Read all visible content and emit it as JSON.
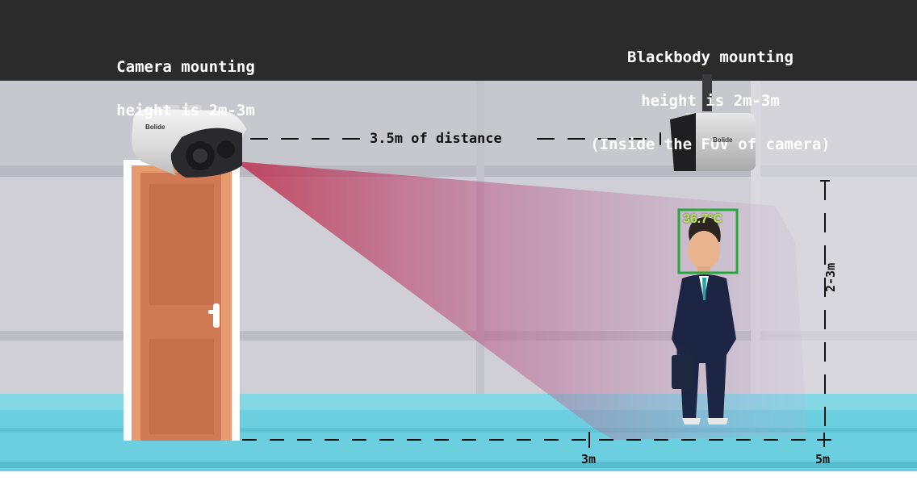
{
  "header": {
    "camera_line1": "Camera mounting",
    "camera_line2": "height is 2m-3m",
    "blackbody_line1": "Blackbody mounting",
    "blackbody_line2": "height is 2m-3m",
    "blackbody_line3": "(Inside the FOV of camera)"
  },
  "camera": {
    "brand": "Bolide"
  },
  "blackbody": {
    "brand": "Bolide"
  },
  "distance_label": "3.5m of distance",
  "temperature_badge": "36.7°C",
  "height_label": "2-3m",
  "ground_ticks": [
    "3m",
    "5m"
  ],
  "colors": {
    "header_bg": "#2b2b2c",
    "wall": "#d0d0d6",
    "floor": "#6ccfdf",
    "door": "#d9835a",
    "fov": "#c03a5c",
    "face_box": "#27a83c",
    "temp_text": "#b6e25a"
  }
}
